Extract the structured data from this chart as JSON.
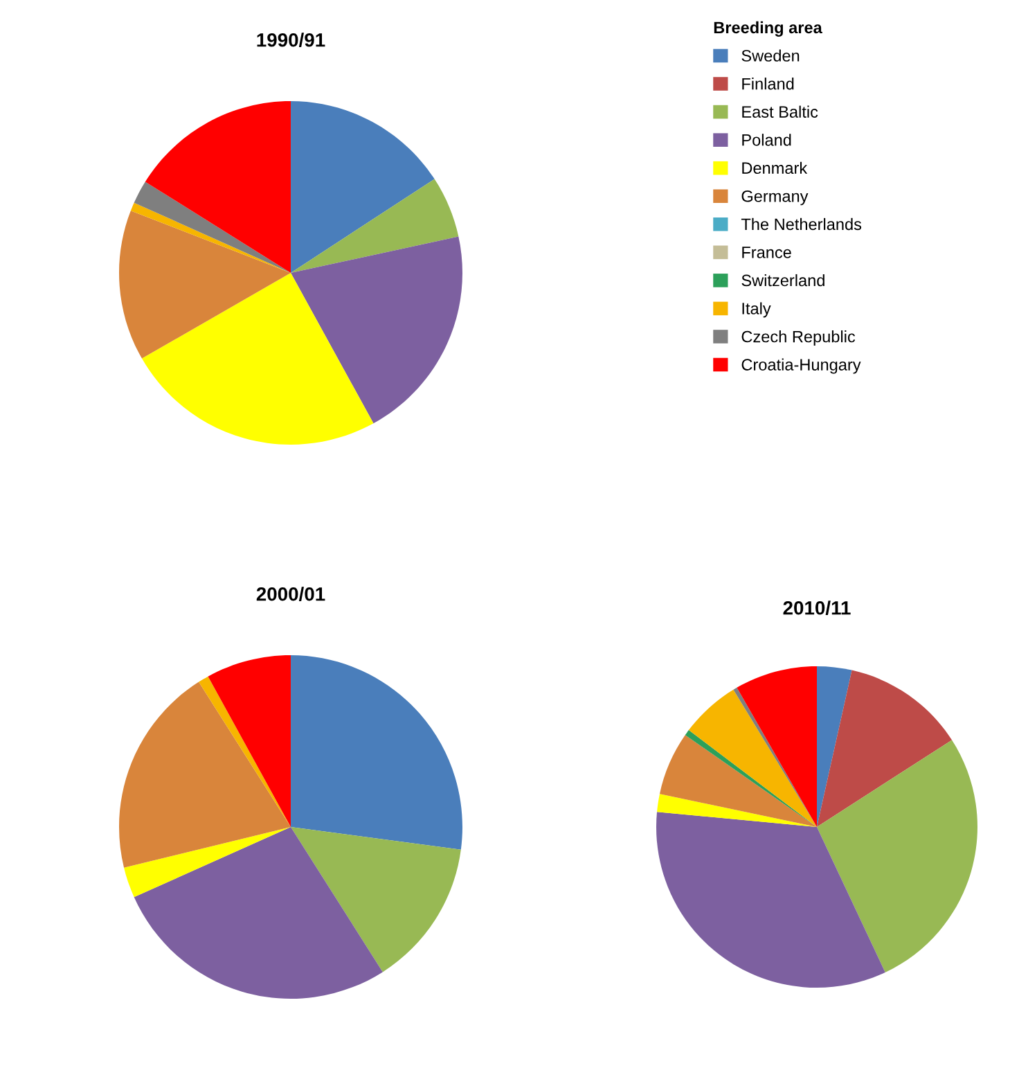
{
  "chart_data": [
    {
      "type": "pie",
      "title": "1990/91",
      "legend": "right",
      "legend_title": "Breeding area",
      "categories": [
        "Sweden",
        "Finland",
        "East Baltic",
        "Poland",
        "Denmark",
        "Germany",
        "The Netherlands",
        "France",
        "Switzerland",
        "Italy",
        "Czech Republic",
        "Croatia-Hungary"
      ],
      "colors": [
        "#4a7ebb",
        "#be4b48",
        "#98b954",
        "#7d60a0",
        "#ffff00",
        "#d9853b",
        "#4bacc6",
        "#c4bd97",
        "#2ca05a",
        "#f7b500",
        "#7f7f7f",
        "#ff0000"
      ],
      "values": [
        15.8,
        0,
        5.8,
        20.4,
        24.7,
        14.2,
        0,
        0,
        0,
        0.8,
        2.2,
        16.1
      ]
    },
    {
      "type": "pie",
      "title": "2000/01",
      "categories": [
        null,
        null,
        null,
        null,
        null,
        null,
        null,
        null,
        null,
        null,
        null,
        null
      ],
      "colors": [
        "#4a7ebb",
        "#be4b48",
        "#98b954",
        "#7d60a0",
        "#ffff00",
        "#d9853b",
        "#4bacc6",
        "#c4bd97",
        "#2ca05a",
        "#f7b500",
        "#7f7f7f",
        "#ff0000"
      ],
      "values": [
        27.1,
        0,
        13.9,
        27.3,
        2.9,
        19.8,
        0,
        0,
        0,
        1.0,
        0,
        8.0
      ]
    },
    {
      "type": "pie",
      "title": "2010/11",
      "categories": [
        null,
        null,
        null,
        null,
        null,
        null,
        null,
        null,
        null,
        null,
        null,
        null
      ],
      "colors": [
        "#4a7ebb",
        "#be4b48",
        "#98b954",
        "#7d60a0",
        "#ffff00",
        "#d9853b",
        "#4bacc6",
        "#c4bd97",
        "#2ca05a",
        "#f7b500",
        "#7f7f7f",
        "#ff0000"
      ],
      "values": [
        3.5,
        12.4,
        27.1,
        33.5,
        1.8,
        6.4,
        0,
        0,
        0.6,
        6.0,
        0.4,
        8.3
      ]
    }
  ]
}
